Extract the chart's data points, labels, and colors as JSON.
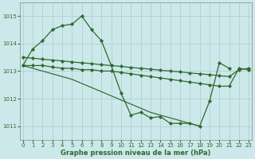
{
  "background_color": "#cce8ea",
  "grid_color": "#aacccc",
  "line_color": "#2d6a2d",
  "xlabel": "Graphe pression niveau de la mer (hPa)",
  "xlim": [
    -0.3,
    23.3
  ],
  "ylim": [
    1010.5,
    1015.5
  ],
  "yticks": [
    1011,
    1012,
    1013,
    1014,
    1015
  ],
  "xticks": [
    0,
    1,
    2,
    3,
    4,
    5,
    6,
    7,
    8,
    9,
    10,
    11,
    12,
    13,
    14,
    15,
    16,
    17,
    18,
    19,
    20,
    21,
    22,
    23
  ],
  "s1_x": [
    0,
    1,
    2,
    3,
    4,
    5,
    6,
    7,
    8,
    9,
    10,
    11,
    12,
    13,
    14,
    15,
    16,
    17,
    18,
    19,
    20,
    21
  ],
  "s1_y": [
    1013.2,
    1013.8,
    1014.1,
    1014.5,
    1014.65,
    1014.7,
    1015.0,
    1014.5,
    1014.1,
    1013.2,
    1012.2,
    1011.4,
    1011.5,
    1011.3,
    1011.35,
    1011.1,
    1011.1,
    1011.1,
    1011.0,
    1011.9,
    1013.3,
    1013.1
  ],
  "s2_x": [
    0,
    1,
    2,
    3,
    4,
    5,
    6,
    7,
    8,
    9,
    10,
    11,
    12,
    13,
    14,
    15,
    16,
    17,
    18,
    19,
    20,
    21,
    22,
    23
  ],
  "s2_y": [
    1013.2,
    1013.2,
    1013.2,
    1013.15,
    1013.1,
    1013.1,
    1013.05,
    1013.05,
    1013.0,
    1013.0,
    1012.95,
    1012.9,
    1012.85,
    1012.8,
    1012.75,
    1012.7,
    1012.65,
    1012.6,
    1012.55,
    1012.5,
    1012.45,
    1012.45,
    1013.1,
    1013.05
  ],
  "s3_x": [
    0,
    1,
    2,
    3,
    4,
    5,
    6,
    7,
    8,
    9,
    10,
    11,
    12,
    13,
    14,
    15,
    16,
    17,
    18,
    19,
    20,
    21,
    22,
    23
  ],
  "s3_y": [
    1013.5,
    1013.47,
    1013.43,
    1013.4,
    1013.37,
    1013.33,
    1013.3,
    1013.27,
    1013.23,
    1013.2,
    1013.17,
    1013.13,
    1013.1,
    1013.07,
    1013.03,
    1013.0,
    1012.97,
    1012.93,
    1012.9,
    1012.87,
    1012.83,
    1012.8,
    1013.05,
    1013.1
  ],
  "s4_x": [
    0,
    1,
    2,
    3,
    4,
    5,
    6,
    7,
    8,
    9,
    10,
    11,
    12,
    13,
    14,
    15,
    16,
    17,
    18
  ],
  "s4_y": [
    1013.2,
    1013.1,
    1013.0,
    1012.9,
    1012.8,
    1012.7,
    1012.55,
    1012.4,
    1012.25,
    1012.1,
    1011.95,
    1011.8,
    1011.65,
    1011.5,
    1011.4,
    1011.3,
    1011.2,
    1011.1,
    1011.0
  ]
}
